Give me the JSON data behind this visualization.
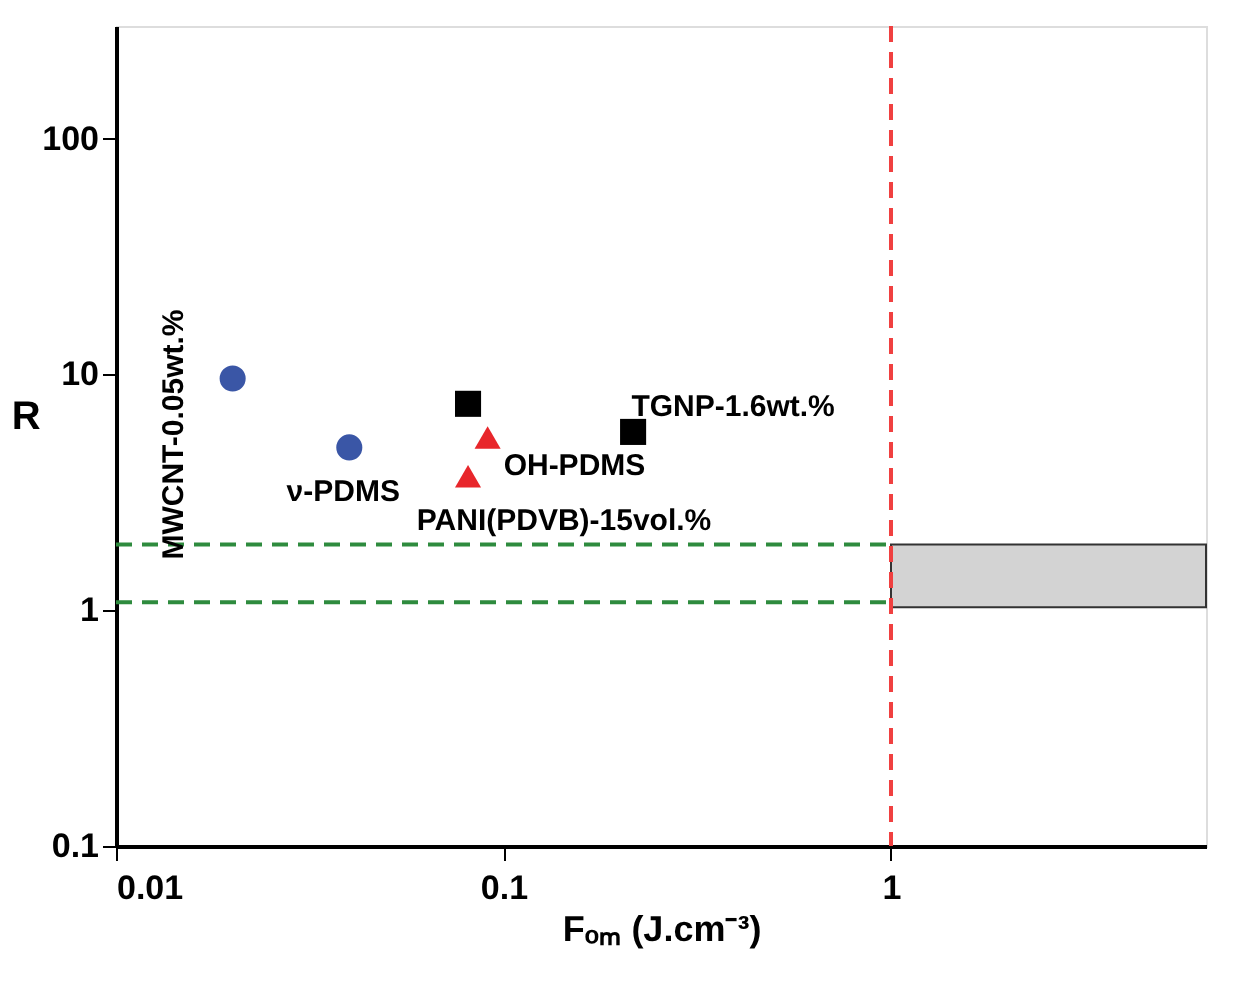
{
  "chart_data": {
    "type": "scatter",
    "xlabel": "Fₒₘ (J.cm⁻³)",
    "ylabel": "R",
    "log": "xy",
    "xlim": [
      0.01,
      6.5
    ],
    "ylim": [
      0.1,
      300
    ],
    "xticks": [
      0.01,
      0.1,
      1
    ],
    "yticks": [
      0.1,
      1,
      10,
      100
    ],
    "grid": false,
    "series": [
      {
        "name": "MWCNT-0.05wt.%",
        "color": "#3a56a6",
        "marker": "circle",
        "x": [
          0.02
        ],
        "values": [
          9.6
        ]
      },
      {
        "name": "ν-PDMS",
        "color": "#3a56a6",
        "marker": "circle",
        "x": [
          0.04
        ],
        "values": [
          4.9
        ]
      },
      {
        "color": "#000000",
        "marker": "square",
        "x": [
          0.081
        ],
        "values": [
          7.5
        ]
      },
      {
        "name": "TGNP-1.6wt.%",
        "color": "#000000",
        "marker": "square",
        "x": [
          0.216
        ],
        "values": [
          5.7
        ]
      },
      {
        "name": "OH-PDMS",
        "color": "#e8262b",
        "marker": "triangle",
        "x": [
          0.091
        ],
        "values": [
          5.4
        ]
      },
      {
        "name": "PANI(PDVB)-15vol.%",
        "color": "#e8262b",
        "marker": "triangle",
        "x": [
          0.081
        ],
        "values": [
          3.7
        ]
      }
    ],
    "ref_lines": [
      {
        "axis": "x",
        "value": 1,
        "color": "#f04040",
        "line_style": "dashed"
      },
      {
        "axis": "y",
        "value": 1.9,
        "color": "#2e8b3e",
        "line_style": "dashed"
      },
      {
        "axis": "y",
        "value": 1.08,
        "color": "#2e8b3e",
        "line_style": "dashed"
      }
    ],
    "bands": [
      {
        "axis": "y",
        "from": 1.03,
        "to": 1.9,
        "color": "#d3d3d3"
      }
    ]
  }
}
